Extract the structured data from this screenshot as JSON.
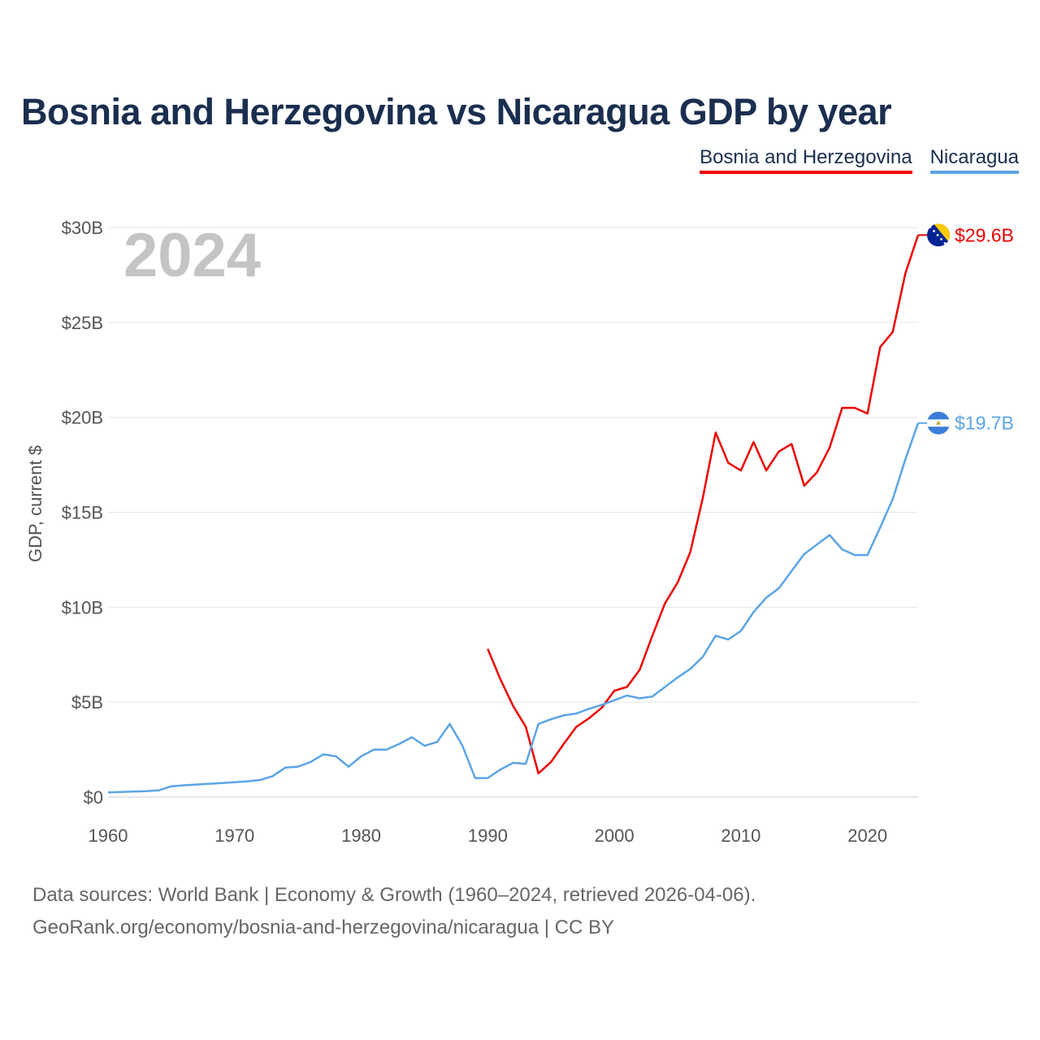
{
  "title": "Bosnia and Herzegovina vs Nicaragua GDP by year",
  "legend": [
    {
      "name": "Bosnia and Herzegovina",
      "color": "#ee0000"
    },
    {
      "name": "Nicaragua",
      "color": "#5ba4e6"
    }
  ],
  "year_display": "2024",
  "footer": {
    "line1": "Data sources: World Bank | Economy & Growth (1960–2024, retrieved 2026-04-06).",
    "line2": "GeoRank.org/economy/bosnia-and-herzegovina/nicaragua | CC BY"
  },
  "chart_data": {
    "type": "line",
    "ylabel": "GDP, current $",
    "xlim": [
      1960,
      2024
    ],
    "ylim": [
      0,
      30
    ],
    "y_unit": "billions USD",
    "x_ticks": [
      1960,
      1970,
      1980,
      1990,
      2000,
      2010,
      2020
    ],
    "y_ticks": [
      {
        "value": 0,
        "label": "$0"
      },
      {
        "value": 5,
        "label": "$5B"
      },
      {
        "value": 10,
        "label": "$10B"
      },
      {
        "value": 15,
        "label": "$15B"
      },
      {
        "value": 20,
        "label": "$20B"
      },
      {
        "value": 25,
        "label": "$25B"
      },
      {
        "value": 30,
        "label": "$30B"
      }
    ],
    "grid": true,
    "legend_position": "top-right",
    "series": [
      {
        "name": "Bosnia and Herzegovina",
        "color": "#ee0000",
        "end_label": "$29.6B",
        "flag_icon": "bosnia-flag-icon",
        "x": [
          1990,
          1991,
          1992,
          1993,
          1994,
          1995,
          1996,
          1997,
          1998,
          1999,
          2000,
          2001,
          2002,
          2003,
          2004,
          2005,
          2006,
          2007,
          2008,
          2009,
          2010,
          2011,
          2012,
          2013,
          2014,
          2015,
          2016,
          2017,
          2018,
          2019,
          2020,
          2021,
          2022,
          2023,
          2024
        ],
        "y": [
          7.8,
          6.2,
          4.8,
          3.7,
          1.25,
          1.85,
          2.8,
          3.7,
          4.15,
          4.7,
          5.6,
          5.8,
          6.7,
          8.5,
          10.2,
          11.3,
          12.9,
          15.8,
          19.2,
          17.6,
          17.2,
          18.7,
          17.2,
          18.2,
          18.6,
          16.4,
          17.1,
          18.4,
          20.5,
          20.5,
          20.2,
          23.7,
          24.5,
          27.6,
          29.6
        ]
      },
      {
        "name": "Nicaragua",
        "color": "#5ba4e6",
        "end_label": "$19.7B",
        "flag_icon": "nicaragua-flag-icon",
        "x": [
          1960,
          1961,
          1962,
          1963,
          1964,
          1965,
          1966,
          1967,
          1968,
          1969,
          1970,
          1971,
          1972,
          1973,
          1974,
          1975,
          1976,
          1977,
          1978,
          1979,
          1980,
          1981,
          1982,
          1983,
          1984,
          1985,
          1986,
          1987,
          1988,
          1989,
          1990,
          1991,
          1992,
          1993,
          1994,
          1995,
          1996,
          1997,
          1998,
          1999,
          2000,
          2001,
          2002,
          2003,
          2004,
          2005,
          2006,
          2007,
          2008,
          2009,
          2010,
          2011,
          2012,
          2013,
          2014,
          2015,
          2016,
          2017,
          2018,
          2019,
          2020,
          2021,
          2022,
          2023,
          2024
        ],
        "y": [
          0.25,
          0.27,
          0.29,
          0.31,
          0.35,
          0.57,
          0.62,
          0.66,
          0.7,
          0.74,
          0.78,
          0.83,
          0.9,
          1.1,
          1.55,
          1.6,
          1.85,
          2.25,
          2.15,
          1.6,
          2.15,
          2.5,
          2.5,
          2.8,
          3.15,
          2.7,
          2.9,
          3.85,
          2.7,
          1.0,
          1.0,
          1.45,
          1.8,
          1.75,
          3.85,
          4.1,
          4.3,
          4.4,
          4.65,
          4.85,
          5.1,
          5.35,
          5.2,
          5.3,
          5.8,
          6.3,
          6.75,
          7.4,
          8.5,
          8.3,
          8.75,
          9.75,
          10.5,
          11.0,
          11.9,
          12.8,
          13.3,
          13.8,
          13.05,
          12.75,
          12.75,
          14.2,
          15.7,
          17.8,
          19.7
        ]
      }
    ]
  }
}
